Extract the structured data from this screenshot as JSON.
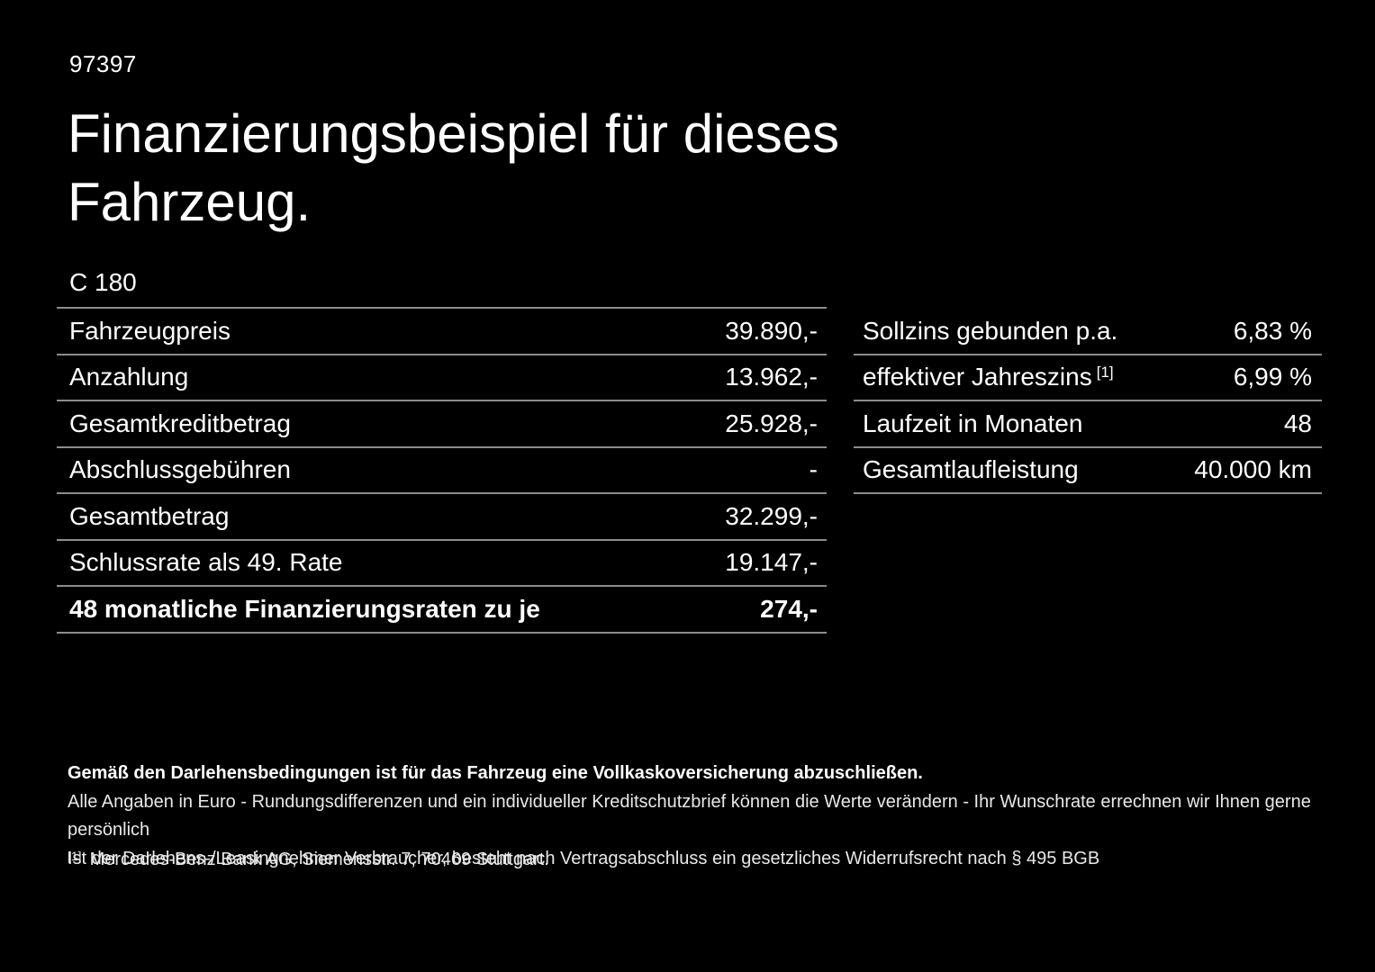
{
  "page": {
    "doc_number": "97397",
    "title": "Finanzierungsbeispiel für dieses Fahrzeug.",
    "model": "C 180"
  },
  "finance_table": {
    "rows": [
      {
        "label": "Fahrzeugpreis",
        "value": "39.890,-"
      },
      {
        "label": "Anzahlung",
        "value": "13.962,-"
      },
      {
        "label": "Gesamtkreditbetrag",
        "value": "25.928,-"
      },
      {
        "label": "Abschlussgebühren",
        "value": "-"
      },
      {
        "label": "Gesamtbetrag",
        "value": "32.299,-"
      },
      {
        "label": "Schlussrate als 49. Rate",
        "value": "19.147,-"
      },
      {
        "label": "48 monatliche Finanzierungsraten zu je",
        "value": "274,-"
      }
    ]
  },
  "conditions_table": {
    "rows": [
      {
        "label": "Sollzins gebunden p.a.",
        "value": "6,83 %"
      },
      {
        "label": "effektiver Jahreszins",
        "label_sup": "[1]",
        "value": "6,99 %"
      },
      {
        "label": "Laufzeit in Monaten",
        "value": "48"
      },
      {
        "label": "Gesamtlaufleistung",
        "value": "40.000 km"
      }
    ]
  },
  "footnotes": {
    "bold_note": "Gemäß den Darlehensbedingungen ist für das Fahrzeug eine Vollkaskoversicherung abzuschließen.",
    "note_1": "Alle Angaben in Euro - Rundungsdifferenzen und ein individueller Kreditschutzbrief können die Werte verändern - Ihr Wunschrate errechnen wir Ihnen gerne persönlich",
    "note_2": "Ist der Darlehens-/Leasingnehmer Verbraucher, besteht nach Vertragsabschluss ein gesetzliches Widerrufsrecht nach § 495 BGB",
    "footnote_marker": "[1]",
    "footnote_text": "Mercedes-Benz Bank AG, Siemensstr. 7, 70469 Stuttgart."
  },
  "colors": {
    "background": "#000000",
    "text": "#ffffff",
    "divider": "#8c8c8c"
  }
}
